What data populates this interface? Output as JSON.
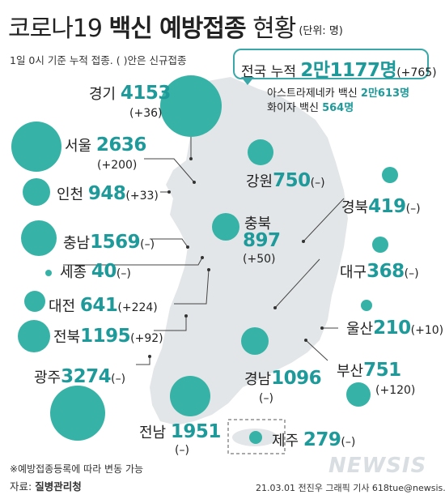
{
  "title": {
    "prefix": "코로나19 ",
    "bold": "백신 예방접종",
    "suffix": " 현황",
    "unit": "(단위: 명)"
  },
  "subtitle": "1일 0시 기준 누적 접종. ( )안은 신규접종",
  "summary": {
    "label": "전국 누적",
    "total": "2만1177명",
    "total_change": "(+765)",
    "astra_label": "아스트라제네카 백신",
    "astra_value": "2만613명",
    "pfizer_label": "화이자 백신",
    "pfizer_value": "564명"
  },
  "regions": [
    {
      "key": "gyeonggi",
      "name": "경기",
      "value": "4153",
      "change": "(+36)"
    },
    {
      "key": "seoul",
      "name": "서울",
      "value": "2636",
      "change": "(+200)"
    },
    {
      "key": "incheon",
      "name": "인천",
      "value": "948",
      "change": "(+33)"
    },
    {
      "key": "gangwon",
      "name": "강원",
      "value": "750",
      "change": "(–)"
    },
    {
      "key": "chungbuk",
      "name": "충북",
      "value": "897",
      "change": "(+50)"
    },
    {
      "key": "gyeongbuk",
      "name": "경북",
      "value": "419",
      "change": "(–)"
    },
    {
      "key": "chungnam",
      "name": "충남",
      "value": "1569",
      "change": "(–)"
    },
    {
      "key": "sejong",
      "name": "세종",
      "value": "40",
      "change": "(–)"
    },
    {
      "key": "daegu",
      "name": "대구",
      "value": "368",
      "change": "(–)"
    },
    {
      "key": "daejeon",
      "name": "대전",
      "value": "641",
      "change": "(+224)"
    },
    {
      "key": "ulsan",
      "name": "울산",
      "value": "210",
      "change": "(+10)"
    },
    {
      "key": "jeonbuk",
      "name": "전북",
      "value": "1195",
      "change": "(+92)"
    },
    {
      "key": "gwangju",
      "name": "광주",
      "value": "3274",
      "change": "(–)"
    },
    {
      "key": "busan",
      "name": "부산",
      "value": "751",
      "change": "(+120)"
    },
    {
      "key": "gyeongnam",
      "name": "경남",
      "value": "1096",
      "change": "(–)"
    },
    {
      "key": "jeonnam",
      "name": "전남",
      "value": "1951",
      "change": "(–)"
    },
    {
      "key": "jeju",
      "name": "제주",
      "value": "279",
      "change": "(–)"
    }
  ],
  "footnote": "※예방접종등록에 따라 변동 가능",
  "source_label": "자료: ",
  "source_value": "질병관리청",
  "credit": "21.03.01 전진우 그래픽 기사 618tue@newsis.com",
  "watermark": "NEWSIS",
  "colors": {
    "accent": "#1f9a9a",
    "bubble": "#36b3a6",
    "map": "#e3e6e8"
  }
}
